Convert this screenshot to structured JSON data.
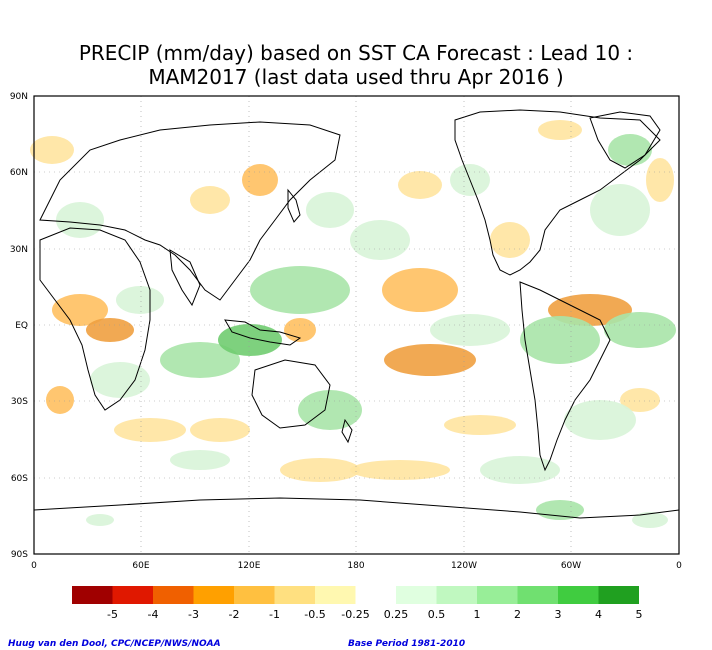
{
  "title": {
    "line1": "PRECIP (mm/day) based on SST CA Forecast : Lead 10 :",
    "line2": "MAM2017 (last data used thru Apr 2016 )"
  },
  "axes": {
    "y_ticks": [
      "90N",
      "60N",
      "30N",
      "EQ",
      "30S",
      "60S",
      "90S"
    ],
    "x_ticks": [
      "0",
      "60E",
      "120E",
      "180",
      "120W",
      "60W",
      "0"
    ]
  },
  "legend": {
    "labels": [
      "-5",
      "-4",
      "-3",
      "-2",
      "-1",
      "-0.5",
      "-0.25",
      "0.25",
      "0.5",
      "1",
      "2",
      "3",
      "4",
      "5"
    ],
    "colors": [
      "#a00000",
      "#e01800",
      "#f06000",
      "#ffa000",
      "#ffc040",
      "#ffe080",
      "#fff8b0",
      "#ffffff",
      "#e0ffe0",
      "#c0f8c0",
      "#98ee98",
      "#70e070",
      "#40cc40",
      "#20a020"
    ]
  },
  "footer": {
    "credit": "Huug van den Dool, CPC/NCEP/NWS/NOAA",
    "base_period": "Base Period 1981-2010",
    "credit_color": "#0000dd"
  },
  "anomaly_colors": {
    "dry_light": "#ffe4a0",
    "dry_medium": "#ffc060",
    "dry_strong": "#f0a040",
    "wet_light": "#d8f4d8",
    "wet_medium": "#a8e4a8",
    "wet_strong": "#70cc70"
  }
}
